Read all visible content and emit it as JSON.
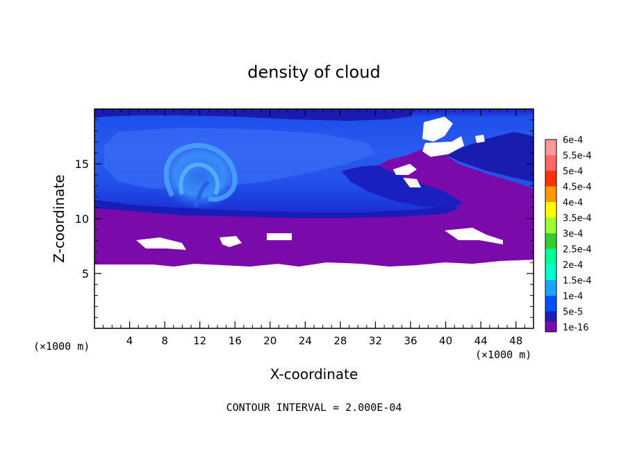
{
  "chart_data": {
    "type": "heatmap",
    "title": "density of cloud",
    "xlabel": "X-coordinate",
    "ylabel": "Z-coordinate",
    "x_unit": "(×1000 m)",
    "y_unit": "(×1000 m)",
    "footer": "CONTOUR INTERVAL = 2.000E-04",
    "xlim": [
      0,
      50
    ],
    "ylim": [
      0,
      20
    ],
    "x_ticks": [
      4,
      8,
      12,
      16,
      20,
      24,
      28,
      32,
      36,
      40,
      44,
      48
    ],
    "y_ticks": [
      5,
      10,
      15
    ],
    "colorbar": {
      "labels": [
        "6e-4",
        "5.5e-4",
        "5e-4",
        "4.5e-4",
        "4e-4",
        "3.5e-4",
        "3e-4",
        "2.5e-4",
        "2e-4",
        "1.5e-4",
        "1e-4",
        "5e-5",
        "1e-16"
      ],
      "colors": [
        "#ff9999",
        "#ff6666",
        "#ff3300",
        "#ff9900",
        "#ffff00",
        "#99ff33",
        "#33cc33",
        "#00ff99",
        "#00ffcc",
        "#1ea2ff",
        "#0050ff",
        "#1e1eb4",
        "#7a0aaa"
      ]
    },
    "regions": {
      "no_data_below_km": 6,
      "cloud_base_km": 6,
      "dense_layer_km": [
        11,
        19.5
      ],
      "vortex_center_km": [
        11.5,
        13.5
      ]
    }
  }
}
